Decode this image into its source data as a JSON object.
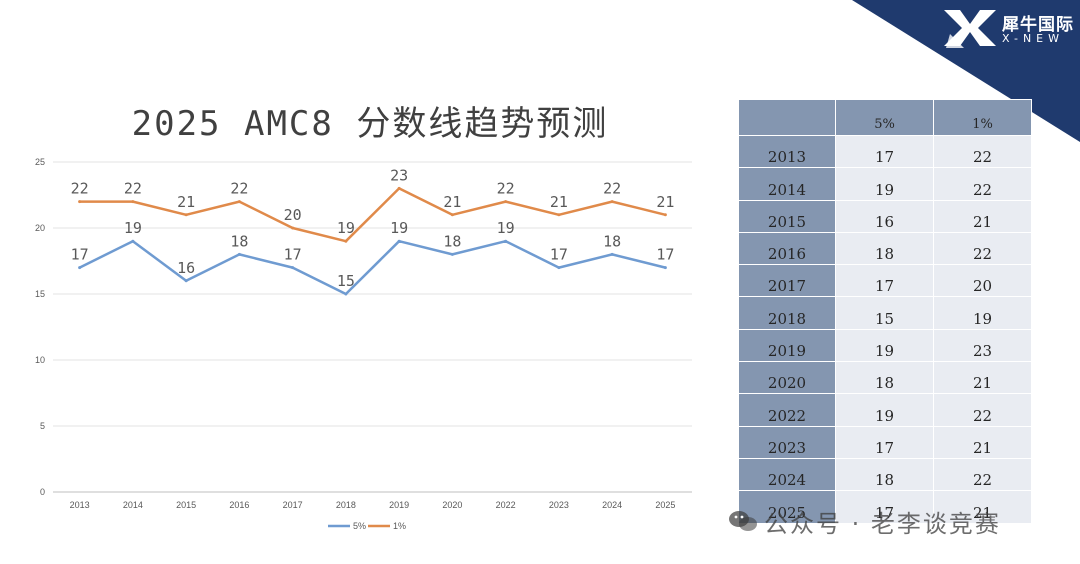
{
  "brand": {
    "name_cn": "犀牛国际",
    "name_en": "X-NEW",
    "corner_color": "#1f3a6e"
  },
  "watermark": {
    "text": "公众号 · 老李谈竞赛"
  },
  "table": {
    "headers": [
      "",
      "5%",
      "1%"
    ],
    "rows": [
      [
        "2013",
        "17",
        "22"
      ],
      [
        "2014",
        "19",
        "22"
      ],
      [
        "2015",
        "16",
        "21"
      ],
      [
        "2016",
        "18",
        "22"
      ],
      [
        "2017",
        "17",
        "20"
      ],
      [
        "2018",
        "15",
        "19"
      ],
      [
        "2019",
        "19",
        "23"
      ],
      [
        "2020",
        "18",
        "21"
      ],
      [
        "2022",
        "19",
        "22"
      ],
      [
        "2023",
        "17",
        "21"
      ],
      [
        "2024",
        "18",
        "22"
      ],
      [
        "2025",
        "17",
        "21"
      ]
    ]
  },
  "chart_data": {
    "type": "line",
    "title": "2025 AMC8 分数线趋势预测",
    "categories": [
      "2013",
      "2014",
      "2015",
      "2016",
      "2017",
      "2018",
      "2019",
      "2020",
      "2022",
      "2023",
      "2024",
      "2025"
    ],
    "series": [
      {
        "name": "5%",
        "color": "#6f9bd1",
        "values": [
          17,
          19,
          16,
          18,
          17,
          15,
          19,
          18,
          19,
          17,
          18,
          17
        ]
      },
      {
        "name": "1%",
        "color": "#e08a4a",
        "values": [
          22,
          22,
          21,
          22,
          20,
          19,
          23,
          21,
          22,
          21,
          22,
          21
        ]
      }
    ],
    "yticks": [
      0,
      5,
      10,
      15,
      20,
      25
    ],
    "ylim": [
      0,
      25
    ],
    "xlabel": "",
    "ylabel": "",
    "grid": true,
    "legend": "bottom",
    "data_labels": true
  }
}
